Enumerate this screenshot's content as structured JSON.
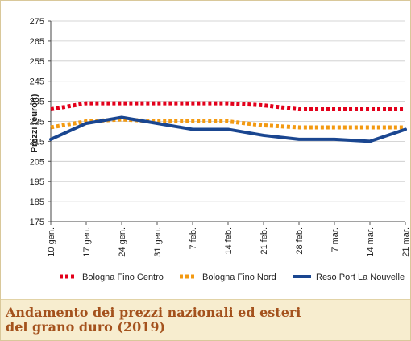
{
  "chart_data": {
    "type": "line",
    "title": "",
    "xlabel": "",
    "ylabel": "Prezzi (euro/t)",
    "ylim": [
      175,
      275
    ],
    "yticks": [
      175,
      185,
      195,
      205,
      215,
      225,
      235,
      245,
      255,
      265,
      275
    ],
    "grid": "horizontal",
    "legend_position": "bottom",
    "categories": [
      "10 gen.",
      "17 gen.",
      "24 gen.",
      "31 gen.",
      "7 feb.",
      "14 feb.",
      "21 feb.",
      "28 feb.",
      "7 mar.",
      "14 mar.",
      "21 mar."
    ],
    "series": [
      {
        "name": "Bologna Fino Centro",
        "color": "#e3001b",
        "style": "dotted",
        "values": [
          231,
          234,
          234,
          234,
          234,
          234,
          233,
          231,
          231,
          231,
          231
        ]
      },
      {
        "name": "Bologna Fino Nord",
        "color": "#f39a12",
        "style": "dotted",
        "values": [
          222,
          225,
          226,
          225,
          225,
          225,
          223,
          222,
          222,
          222,
          222
        ]
      },
      {
        "name": "Reso Port La Nouvelle",
        "color": "#1a4690",
        "style": "solid",
        "values": [
          216,
          224,
          227,
          224,
          221,
          221,
          218,
          216,
          216,
          215,
          221
        ]
      }
    ]
  },
  "caption": {
    "line1": "Andamento dei prezzi nazionali ed esteri",
    "line2": "del grano duro (2019)"
  }
}
